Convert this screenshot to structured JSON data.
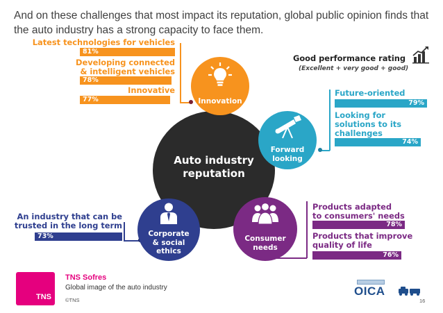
{
  "headline": "And on these challenges that most impact its reputation, global public opinion finds that the auto industry has a strong capacity to face them.",
  "legend": {
    "title": "Good performance rating",
    "subtitle": "(Excellent + very good + good)",
    "icon": "bar-chart-icon"
  },
  "center": {
    "label_line1": "Auto industry",
    "label_line2": "reputation"
  },
  "segments": {
    "innovation": {
      "label": "Innovation",
      "color": "#f7931e",
      "icon": "lightbulb-icon",
      "items": [
        {
          "label": "Latest technologies for vehicles",
          "value": "81%"
        },
        {
          "label_line1": "Developing connected",
          "label_line2": "& intelligent vehicles",
          "value": "78%"
        },
        {
          "label": "Innovative",
          "value": "77%"
        }
      ]
    },
    "forward": {
      "label_line1": "Forward",
      "label_line2": "looking",
      "color": "#2aa6c7",
      "icon": "telescope-icon",
      "items": [
        {
          "label": "Future-oriented",
          "value": "79%"
        },
        {
          "label_line1": "Looking for",
          "label_line2": "solutions to its",
          "label_line3": "challenges",
          "value": "74%"
        }
      ]
    },
    "consumer": {
      "label_line1": "Consumer",
      "label_line2": "needs",
      "color": "#7b2a84",
      "icon": "people-icon",
      "items": [
        {
          "label_line1": "Products adapted",
          "label_line2": "to consumers' needs",
          "value": "78%"
        },
        {
          "label_line1": "Products that improve",
          "label_line2": "quality of life",
          "value": "76%"
        }
      ]
    },
    "corporate": {
      "label_line1": "Corporate",
      "label_line2": "& social",
      "label_line3": "ethics",
      "color": "#2f3f8f",
      "icon": "businessman-icon",
      "items": [
        {
          "label_line1": "An industry that can be",
          "label_line2": "trusted in the long term",
          "value": "73%"
        }
      ]
    }
  },
  "footer": {
    "brand_logo_text": "TNS",
    "brand": "TNS Sofres",
    "subtitle": "Global image of the auto industry",
    "copyright": "©TNS",
    "page_number": "16",
    "partner_logo_text": "OICA"
  }
}
